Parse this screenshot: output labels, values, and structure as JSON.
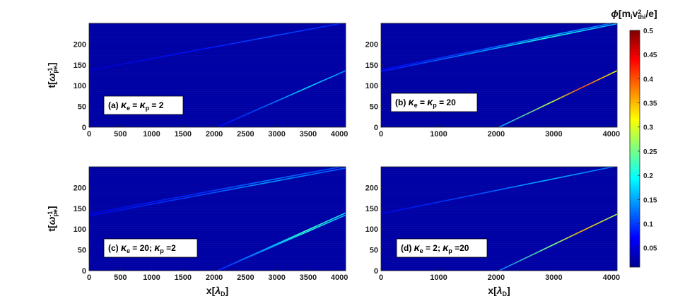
{
  "colormap": {
    "stops": [
      "#00008f",
      "#0000ff",
      "#0080ff",
      "#00ffff",
      "#80ff80",
      "#ffff00",
      "#ff8000",
      "#ff0000",
      "#800000"
    ],
    "min": 0.0,
    "max": 0.5
  },
  "colorbar": {
    "title": "ϕ[m_i v²_thi /e]",
    "ticks": [
      "0.5",
      "0.45",
      "0.4",
      "0.35",
      "0.3",
      "0.25",
      "0.2",
      "0.15",
      "0.1",
      "0.05"
    ]
  },
  "chart_data": [
    {
      "type": "heatmap",
      "panel": "a",
      "label": "(a) κe = κp = 2",
      "label_parts": {
        "prefix": "(a) ",
        "k1": "κ",
        "s1": "e",
        "mid": " = ",
        "k2": "κ",
        "s2": "p",
        "suffix": " = 2"
      },
      "xlim": [
        0,
        4100
      ],
      "ylim": [
        0,
        250
      ],
      "xticks": [
        0,
        500,
        1000,
        1500,
        2000,
        2500,
        3000,
        3500,
        4000
      ],
      "yticks": [
        0,
        50,
        100,
        150,
        200
      ],
      "xlabel": "",
      "ylabel": "t[ω⁻¹pe]",
      "features": [
        {
          "desc": "ray",
          "x": [
            0,
            4100
          ],
          "y": [
            137,
            252
          ],
          "peak": 0.1
        },
        {
          "desc": "ray",
          "x": [
            2050,
            4100
          ],
          "y": [
            0,
            136
          ],
          "peak": 0.17
        }
      ]
    },
    {
      "type": "heatmap",
      "panel": "b",
      "label": "(b) κe = κp = 20",
      "label_parts": {
        "prefix": "(b) ",
        "k1": "κ",
        "s1": "e",
        "mid": " = ",
        "k2": "κ",
        "s2": "p",
        "suffix": " = 20"
      },
      "xlim": [
        0,
        4100
      ],
      "ylim": [
        0,
        250
      ],
      "xticks": [
        0,
        1000,
        2000,
        3000,
        4000
      ],
      "yticks": [
        0,
        50,
        100,
        150,
        200
      ],
      "xlabel": "",
      "ylabel": "",
      "features": [
        {
          "desc": "ray",
          "x": [
            0,
            4100
          ],
          "y": [
            134,
            249
          ],
          "peak": 0.2
        },
        {
          "desc": "ray",
          "x": [
            0,
            4100
          ],
          "y": [
            138,
            253
          ],
          "peak": 0.15
        },
        {
          "desc": "ray",
          "x": [
            2050,
            4100
          ],
          "y": [
            0,
            136
          ],
          "peak": 0.4
        }
      ]
    },
    {
      "type": "heatmap",
      "panel": "c",
      "label": "(c) κe = 20; κp = 2",
      "label_parts": {
        "prefix": "(c) ",
        "k1": "κ",
        "s1": "e",
        "mid": " = 20; ",
        "k2": "κ",
        "s2": "p",
        "suffix": " =2"
      },
      "xlim": [
        0,
        4100
      ],
      "ylim": [
        0,
        250
      ],
      "xticks": [
        0,
        500,
        1000,
        1500,
        2000,
        2500,
        3000,
        3500,
        4000
      ],
      "yticks": [
        0,
        50,
        100,
        150,
        200
      ],
      "xlabel": "x[λD]",
      "ylabel": "t[ω⁻¹pe]",
      "features": [
        {
          "desc": "ray",
          "x": [
            0,
            4100
          ],
          "y": [
            132,
            247
          ],
          "peak": 0.14
        },
        {
          "desc": "ray",
          "x": [
            0,
            4100
          ],
          "y": [
            137,
            252
          ],
          "peak": 0.12
        },
        {
          "desc": "ray",
          "x": [
            2050,
            4100
          ],
          "y": [
            0,
            134
          ],
          "peak": 0.2
        },
        {
          "desc": "ray",
          "x": [
            2050,
            4100
          ],
          "y": [
            0,
            139
          ],
          "peak": 0.22
        }
      ]
    },
    {
      "type": "heatmap",
      "panel": "d",
      "label": "(d) κe = 2; κp = 20",
      "label_parts": {
        "prefix": "(d) ",
        "k1": "κ",
        "s1": "e",
        "mid": " = 2; ",
        "k2": "κ",
        "s2": "p",
        "suffix": " =20"
      },
      "xlim": [
        0,
        4100
      ],
      "ylim": [
        0,
        250
      ],
      "xticks": [
        0,
        1000,
        2000,
        3000,
        4000
      ],
      "yticks": [
        0,
        50,
        100,
        150,
        200
      ],
      "xlabel": "x[λD]",
      "ylabel": "",
      "features": [
        {
          "desc": "ray",
          "x": [
            0,
            4100
          ],
          "y": [
            137,
            252
          ],
          "peak": 0.15
        },
        {
          "desc": "ray",
          "x": [
            2050,
            4100
          ],
          "y": [
            0,
            136
          ],
          "peak": 0.35
        }
      ]
    }
  ]
}
